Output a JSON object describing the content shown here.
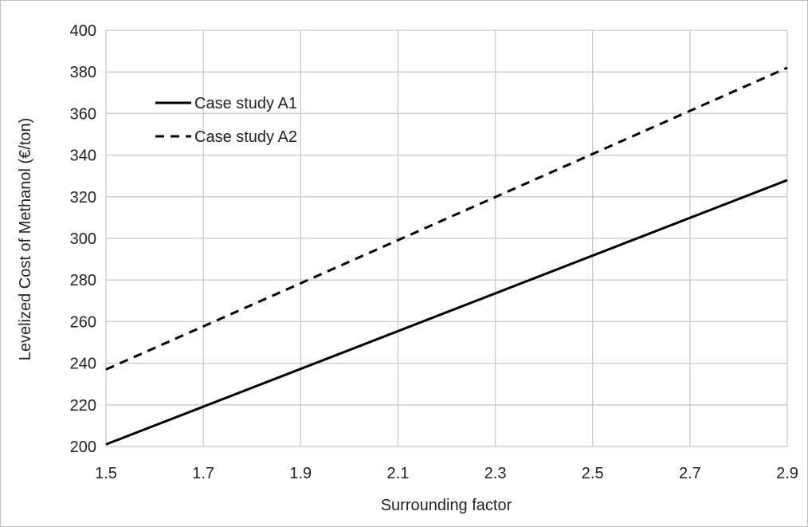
{
  "chart_data": {
    "type": "line",
    "xlabel": "Surrounding factor",
    "ylabel": "Levelized Cost of Methanol (€/ton)",
    "xlim": [
      1.5,
      2.9
    ],
    "ylim": [
      200,
      400
    ],
    "x_ticks": [
      "1.5",
      "1.7",
      "1.9",
      "2.1",
      "2.3",
      "2.5",
      "2.7",
      "2.9"
    ],
    "y_ticks": [
      "200",
      "220",
      "240",
      "260",
      "280",
      "300",
      "320",
      "340",
      "360",
      "380",
      "400"
    ],
    "grid": true,
    "legend_position": "top-left",
    "series": [
      {
        "name": "Case study A1",
        "style": "solid",
        "color": "#000000",
        "x": [
          1.5,
          2.9
        ],
        "y": [
          201,
          328
        ]
      },
      {
        "name": "Case study A2",
        "style": "dashed",
        "color": "#000000",
        "x": [
          1.5,
          2.9
        ],
        "y": [
          237,
          382
        ]
      }
    ]
  }
}
